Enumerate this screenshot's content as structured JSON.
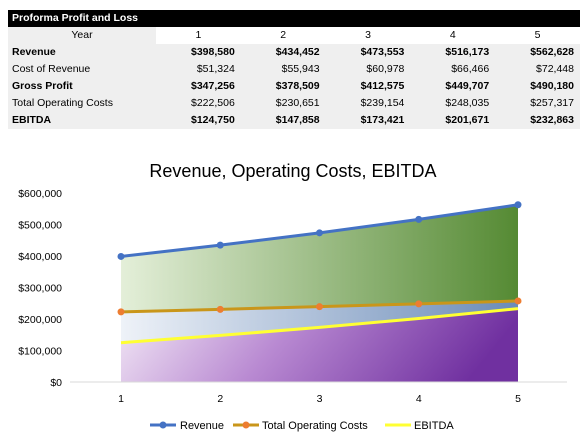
{
  "table": {
    "title": "Proforma Profit and Loss",
    "header_label": "Year",
    "years": [
      "1",
      "2",
      "3",
      "4",
      "5"
    ],
    "rows": [
      {
        "label": "Revenue",
        "bold": true,
        "values": [
          "$398,580",
          "$434,452",
          "$473,553",
          "$516,173",
          "$562,628"
        ]
      },
      {
        "label": "Cost of Revenue",
        "bold": false,
        "values": [
          "$51,324",
          "$55,943",
          "$60,978",
          "$66,466",
          "$72,448"
        ]
      },
      {
        "label": "Gross Profit",
        "bold": true,
        "values": [
          "$347,256",
          "$378,509",
          "$412,575",
          "$449,707",
          "$490,180"
        ]
      },
      {
        "label": "Total Operating Costs",
        "bold": false,
        "values": [
          "$222,506",
          "$230,651",
          "$239,154",
          "$248,035",
          "$257,317"
        ]
      },
      {
        "label": "EBITDA",
        "bold": true,
        "values": [
          "$124,750",
          "$147,858",
          "$173,421",
          "$201,671",
          "$232,863"
        ]
      }
    ]
  },
  "chart_data": {
    "type": "line",
    "title": "Revenue, Operating Costs, EBITDA",
    "categories": [
      "1",
      "2",
      "3",
      "4",
      "5"
    ],
    "y_ticks": [
      "$0",
      "$100,000",
      "$200,000",
      "$300,000",
      "$400,000",
      "$500,000",
      "$600,000"
    ],
    "ylim": [
      0,
      600000
    ],
    "grid": false,
    "legend_position": "bottom",
    "series": [
      {
        "name": "Revenue",
        "color": "#4472c4",
        "marker": true,
        "values": [
          398580,
          434452,
          473553,
          516173,
          562628
        ]
      },
      {
        "name": "Total Operating Costs",
        "color": "#c9961a",
        "marker_color": "#ed7d31",
        "marker": true,
        "values": [
          222506,
          230651,
          239154,
          248035,
          257317
        ]
      },
      {
        "name": "EBITDA",
        "color": "#ffff33",
        "marker": false,
        "values": [
          124750,
          147858,
          173421,
          201671,
          232863
        ]
      }
    ]
  }
}
